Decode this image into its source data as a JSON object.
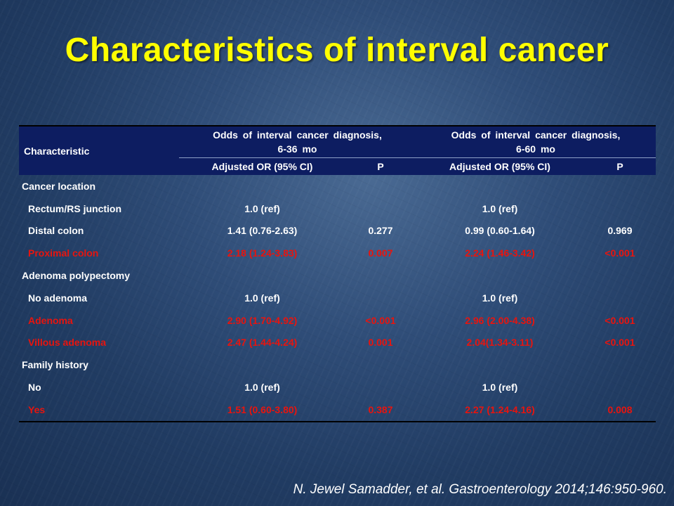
{
  "title": "Characteristics of interval cancer",
  "table": {
    "header": {
      "characteristic": "Characteristic",
      "group1": [
        "Odds of interval cancer diagnosis,",
        "6-36 mo"
      ],
      "group2": [
        "Odds of interval cancer diagnosis,",
        "6-60 mo"
      ],
      "sub": [
        "Adjusted  OR (95% CI)",
        "P",
        "Adjusted  OR (95% CI)",
        "P"
      ]
    },
    "rows": [
      {
        "label": "Cancer location",
        "or1": "",
        "p1": "",
        "or2": "",
        "p2": "",
        "type": "section"
      },
      {
        "label": "Rectum/RS junction",
        "or1": "1.0 (ref)",
        "p1": "",
        "or2": "1.0 (ref)",
        "p2": "",
        "type": "normal"
      },
      {
        "label": "Distal colon",
        "or1": "1.41 (0.76-2.63)",
        "p1": "0.277",
        "or2": "0.99 (0.60-1.64)",
        "p2": "0.969",
        "type": "normal"
      },
      {
        "label": "Proximal colon",
        "or1": "2.18 (1.24-3.83)",
        "p1": "0.007",
        "or2": "2.24 (1.46-3.42)",
        "p2": "<0.001",
        "type": "significant"
      },
      {
        "label": "Adenoma polypectomy",
        "or1": "",
        "p1": "",
        "or2": "",
        "p2": "",
        "type": "section"
      },
      {
        "label": "No adenoma",
        "or1": "1.0 (ref)",
        "p1": "",
        "or2": "1.0 (ref)",
        "p2": "",
        "type": "normal"
      },
      {
        "label": "Adenoma",
        "or1": "2.90 (1.70-4.92)",
        "p1": "<0.001",
        "or2": "2.96 (2.00-4.38)",
        "p2": "<0.001",
        "type": "significant"
      },
      {
        "label": "Villous adenoma",
        "or1": "2.47 (1.44-4.24)",
        "p1": "0.001",
        "or2": "2.04(1.34-3.11)",
        "p2": "<0.001",
        "type": "significant"
      },
      {
        "label": "Family history",
        "or1": "",
        "p1": "",
        "or2": "",
        "p2": "",
        "type": "section"
      },
      {
        "label": "No",
        "or1": "1.0 (ref)",
        "p1": "",
        "or2": "1.0 (ref)",
        "p2": "",
        "type": "normal"
      },
      {
        "label": "Yes",
        "or1": "1.51 (0.60-3.80)",
        "p1": "0.387",
        "or2": "2.27 (1.24-4.16)",
        "p2": "0.008",
        "type": "significant"
      }
    ]
  },
  "citation": "N. Jewel Samadder, et al. Gastroenterology 2014;146:950-960.",
  "colors": {
    "title": "#ffff00",
    "header_bg": "#0d1d61",
    "significant": "#e8140e",
    "text": "#ffffff"
  }
}
